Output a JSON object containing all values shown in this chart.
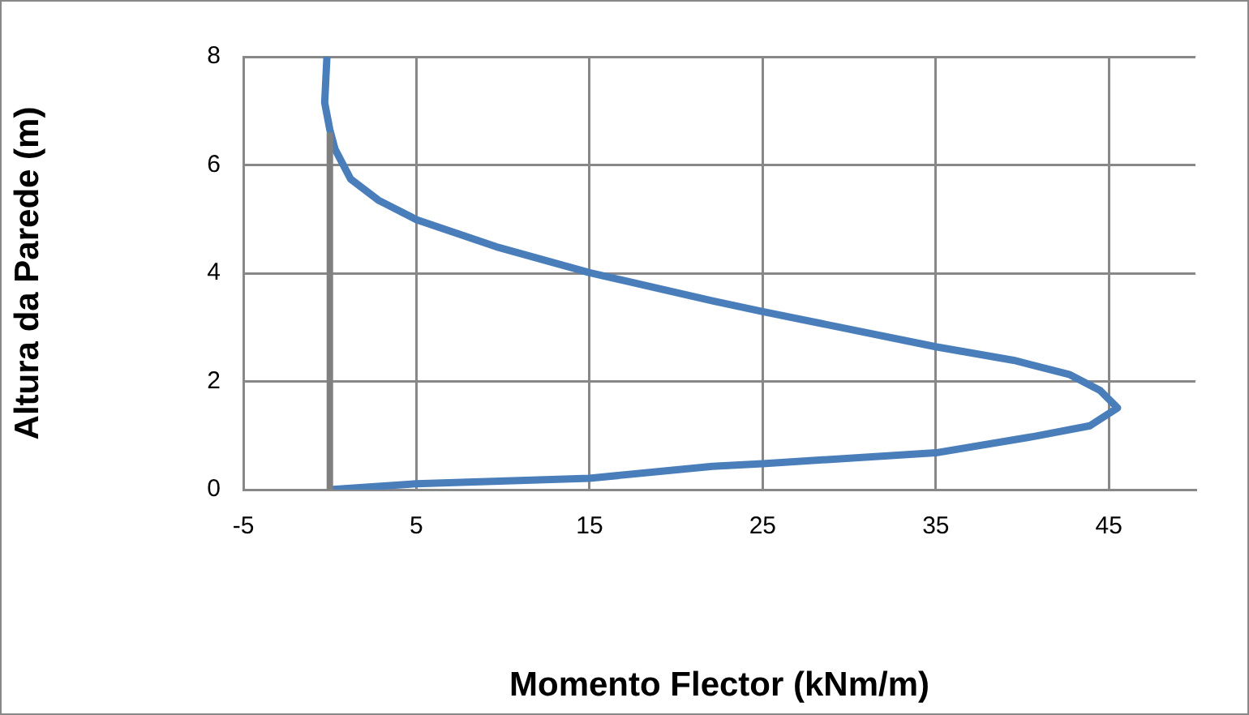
{
  "chart_data": {
    "type": "line",
    "xlabel": "Momento Flector (kNm/m)",
    "ylabel": "Altura da Parede (m)",
    "xlim": [
      -5,
      50
    ],
    "xticks": [
      -5,
      5,
      15,
      25,
      35,
      45
    ],
    "ylim": [
      0,
      8
    ],
    "yticks": [
      0,
      2,
      4,
      6,
      8
    ],
    "grid": true,
    "legend": false,
    "marker": "none",
    "line_style": "solid",
    "series": [
      {
        "color": "#808080",
        "x": [
          0,
          0
        ],
        "values": [
          0,
          6.6
        ]
      },
      {
        "color": "#4a7ebb",
        "x": [
          0,
          5,
          15,
          22.1,
          25,
          35,
          40.8,
          43.9,
          45.5,
          44.5,
          42.7,
          39.5,
          35,
          25,
          22.1,
          15,
          9.6,
          5,
          2.8,
          1.2,
          0.3,
          0,
          -0.3,
          -0.17
        ],
        "values": [
          0,
          0.11,
          0.21,
          0.43,
          0.48,
          0.68,
          0.99,
          1.18,
          1.51,
          1.83,
          2.13,
          2.39,
          2.64,
          3.29,
          3.49,
          4.01,
          4.49,
          4.99,
          5.35,
          5.74,
          6.29,
          6.65,
          7.15,
          8
        ]
      }
    ]
  }
}
